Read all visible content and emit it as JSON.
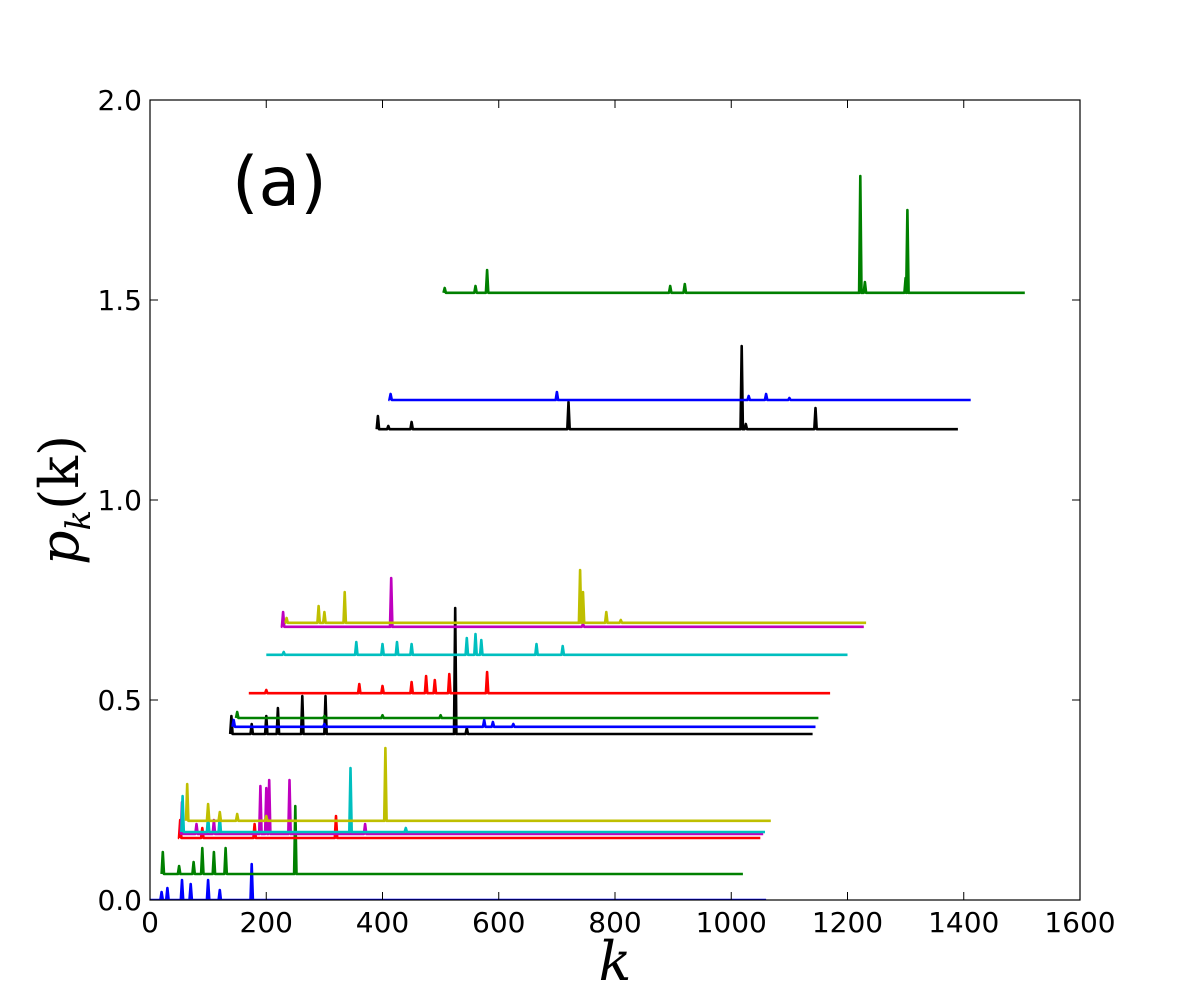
{
  "chart_data": {
    "type": "line",
    "panel_label": "(a)",
    "title": "",
    "xlabel": "k",
    "ylabel_base": "p",
    "ylabel_sub": "k",
    "ylabel_arg": "(k)",
    "xlim": [
      0,
      1600
    ],
    "ylim": [
      0.0,
      2.0
    ],
    "xticks": [
      0,
      200,
      400,
      600,
      800,
      1000,
      1200,
      1400,
      1600
    ],
    "xtick_labels": [
      "0",
      "200",
      "400",
      "600",
      "800",
      "1000",
      "1200",
      "1400",
      "1600"
    ],
    "yticks": [
      0.0,
      0.5,
      1.0,
      1.5,
      2.0
    ],
    "ytick_labels": [
      "0.0",
      "0.5",
      "1.0",
      "1.5",
      "2.0"
    ],
    "grid": false,
    "legend": "none",
    "series": [
      {
        "name": "blue-low",
        "color": "#0000ff",
        "start": 0,
        "end": 1060,
        "base": 0.0,
        "spikes": [
          [
            20,
            0.02
          ],
          [
            30,
            0.03
          ],
          [
            55,
            0.05
          ],
          [
            70,
            0.04
          ],
          [
            100,
            0.05
          ],
          [
            120,
            0.025
          ],
          [
            175,
            0.09
          ]
        ]
      },
      {
        "name": "green-low",
        "color": "#008000",
        "start": 20,
        "end": 1020,
        "base": 0.065,
        "spikes": [
          [
            22,
            0.12
          ],
          [
            50,
            0.085
          ],
          [
            75,
            0.095
          ],
          [
            90,
            0.13
          ],
          [
            110,
            0.12
          ],
          [
            130,
            0.13
          ],
          [
            250,
            0.235
          ]
        ]
      },
      {
        "name": "red-low",
        "color": "#ff0000",
        "start": 50,
        "end": 1050,
        "base": 0.155,
        "spikes": [
          [
            52,
            0.2
          ],
          [
            90,
            0.18
          ],
          [
            180,
            0.19
          ],
          [
            320,
            0.21
          ]
        ]
      },
      {
        "name": "magenta-low",
        "color": "#bf00bf",
        "start": 52,
        "end": 1055,
        "base": 0.165,
        "spikes": [
          [
            55,
            0.245
          ],
          [
            80,
            0.19
          ],
          [
            110,
            0.2
          ],
          [
            190,
            0.285
          ],
          [
            200,
            0.28
          ],
          [
            205,
            0.3
          ],
          [
            240,
            0.3
          ],
          [
            370,
            0.19
          ]
        ]
      },
      {
        "name": "cyan-low",
        "color": "#00bfbf",
        "start": 54,
        "end": 1058,
        "base": 0.17,
        "spikes": [
          [
            56,
            0.26
          ],
          [
            100,
            0.21
          ],
          [
            120,
            0.21
          ],
          [
            345,
            0.33
          ],
          [
            440,
            0.18
          ]
        ]
      },
      {
        "name": "yellow-low",
        "color": "#bfbf00",
        "start": 62,
        "end": 1068,
        "base": 0.198,
        "spikes": [
          [
            64,
            0.29
          ],
          [
            100,
            0.24
          ],
          [
            120,
            0.22
          ],
          [
            150,
            0.215
          ],
          [
            200,
            0.21
          ],
          [
            405,
            0.38
          ]
        ]
      },
      {
        "name": "black-mid",
        "color": "#000000",
        "start": 138,
        "end": 1140,
        "base": 0.415,
        "spikes": [
          [
            140,
            0.46
          ],
          [
            175,
            0.44
          ],
          [
            200,
            0.46
          ],
          [
            220,
            0.48
          ],
          [
            262,
            0.51
          ],
          [
            302,
            0.51
          ],
          [
            525,
            0.73
          ],
          [
            545,
            0.43
          ]
        ]
      },
      {
        "name": "blue-mid",
        "color": "#0000ff",
        "start": 142,
        "end": 1145,
        "base": 0.433,
        "spikes": [
          [
            144,
            0.45
          ],
          [
            300,
            0.44
          ],
          [
            575,
            0.45
          ],
          [
            590,
            0.445
          ],
          [
            625,
            0.44
          ]
        ]
      },
      {
        "name": "green-mid",
        "color": "#008000",
        "start": 148,
        "end": 1150,
        "base": 0.455,
        "spikes": [
          [
            150,
            0.47
          ],
          [
            300,
            0.46
          ],
          [
            400,
            0.462
          ],
          [
            500,
            0.462
          ]
        ]
      },
      {
        "name": "red-mid",
        "color": "#ff0000",
        "start": 170,
        "end": 1170,
        "base": 0.517,
        "spikes": [
          [
            200,
            0.525
          ],
          [
            360,
            0.54
          ],
          [
            400,
            0.535
          ],
          [
            450,
            0.545
          ],
          [
            475,
            0.56
          ],
          [
            490,
            0.55
          ],
          [
            515,
            0.565
          ],
          [
            580,
            0.57
          ]
        ]
      },
      {
        "name": "cyan-mid",
        "color": "#00bfbf",
        "start": 200,
        "end": 1200,
        "base": 0.613,
        "spikes": [
          [
            230,
            0.62
          ],
          [
            355,
            0.645
          ],
          [
            400,
            0.64
          ],
          [
            425,
            0.645
          ],
          [
            450,
            0.64
          ],
          [
            545,
            0.655
          ],
          [
            560,
            0.665
          ],
          [
            570,
            0.65
          ],
          [
            665,
            0.64
          ],
          [
            710,
            0.635
          ]
        ]
      },
      {
        "name": "magenta-mid",
        "color": "#bf00bf",
        "start": 228,
        "end": 1228,
        "base": 0.683,
        "spikes": [
          [
            229,
            0.72
          ],
          [
            415,
            0.805
          ],
          [
            745,
            0.69
          ]
        ]
      },
      {
        "name": "yellow-mid",
        "color": "#bfbf00",
        "start": 232,
        "end": 1232,
        "base": 0.693,
        "spikes": [
          [
            235,
            0.705
          ],
          [
            290,
            0.735
          ],
          [
            300,
            0.72
          ],
          [
            335,
            0.77
          ],
          [
            740,
            0.825
          ],
          [
            745,
            0.77
          ],
          [
            785,
            0.72
          ],
          [
            810,
            0.7
          ]
        ]
      },
      {
        "name": "black-high",
        "color": "#000000",
        "start": 390,
        "end": 1390,
        "base": 1.177,
        "spikes": [
          [
            392,
            1.21
          ],
          [
            410,
            1.185
          ],
          [
            450,
            1.195
          ],
          [
            720,
            1.245
          ],
          [
            1018,
            1.385
          ],
          [
            1025,
            1.19
          ],
          [
            1145,
            1.23
          ]
        ]
      },
      {
        "name": "blue-high",
        "color": "#0000ff",
        "start": 412,
        "end": 1412,
        "base": 1.25,
        "spikes": [
          [
            414,
            1.265
          ],
          [
            700,
            1.27
          ],
          [
            1030,
            1.26
          ],
          [
            1060,
            1.265
          ],
          [
            1100,
            1.255
          ]
        ]
      },
      {
        "name": "green-high",
        "color": "#008000",
        "start": 505,
        "end": 1505,
        "base": 1.518,
        "spikes": [
          [
            507,
            1.53
          ],
          [
            560,
            1.535
          ],
          [
            580,
            1.575
          ],
          [
            895,
            1.535
          ],
          [
            920,
            1.54
          ],
          [
            1222,
            1.81
          ],
          [
            1230,
            1.545
          ],
          [
            1300,
            1.555
          ],
          [
            1303,
            1.725
          ]
        ]
      }
    ]
  }
}
